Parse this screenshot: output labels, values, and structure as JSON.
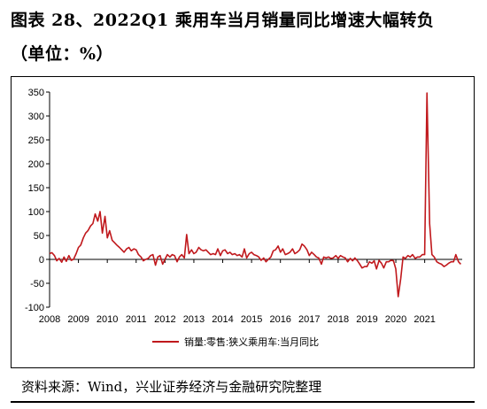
{
  "header": {
    "title": "图表 28、2022Q1 乘用车当月销量同比增速大幅转负",
    "unit": "（单位：%）"
  },
  "source": "资料来源：Wind，兴业证券经济与金融研究院整理",
  "chart_data": {
    "type": "line",
    "title": "图表 28、2022Q1 乘用车当月销量同比增速大幅转负",
    "xlabel": "",
    "ylabel": "",
    "ylim": [
      -100,
      350
    ],
    "yticks": [
      -100,
      -50,
      0,
      50,
      100,
      150,
      200,
      250,
      300,
      350
    ],
    "xlim": [
      2008.0,
      2022.3
    ],
    "xticks": [
      "2008",
      "2009",
      "2010",
      "2011",
      "2012",
      "2013",
      "2014",
      "2015",
      "2016",
      "2017",
      "2018",
      "2019",
      "2020",
      "2021"
    ],
    "grid": false,
    "legend_position": "bottom",
    "series": [
      {
        "name": "销量:零售:狭义乘用车:当月同比",
        "color": "#c0181c",
        "x": [
          2008.0,
          2008.08,
          2008.17,
          2008.25,
          2008.33,
          2008.42,
          2008.5,
          2008.58,
          2008.67,
          2008.75,
          2008.83,
          2008.92,
          2009.0,
          2009.08,
          2009.17,
          2009.25,
          2009.33,
          2009.42,
          2009.5,
          2009.58,
          2009.67,
          2009.75,
          2009.83,
          2009.92,
          2010.0,
          2010.08,
          2010.17,
          2010.25,
          2010.33,
          2010.42,
          2010.5,
          2010.58,
          2010.67,
          2010.75,
          2010.83,
          2010.92,
          2011.0,
          2011.08,
          2011.17,
          2011.25,
          2011.33,
          2011.42,
          2011.5,
          2011.58,
          2011.67,
          2011.75,
          2011.83,
          2011.92,
          2012.0,
          2012.08,
          2012.17,
          2012.25,
          2012.33,
          2012.42,
          2012.5,
          2012.58,
          2012.67,
          2012.75,
          2012.83,
          2012.92,
          2013.0,
          2013.08,
          2013.17,
          2013.25,
          2013.33,
          2013.42,
          2013.5,
          2013.58,
          2013.67,
          2013.75,
          2013.83,
          2013.92,
          2014.0,
          2014.08,
          2014.17,
          2014.25,
          2014.33,
          2014.42,
          2014.5,
          2014.58,
          2014.67,
          2014.75,
          2014.83,
          2014.92,
          2015.0,
          2015.08,
          2015.17,
          2015.25,
          2015.33,
          2015.42,
          2015.5,
          2015.58,
          2015.67,
          2015.75,
          2015.83,
          2015.92,
          2016.0,
          2016.08,
          2016.17,
          2016.25,
          2016.33,
          2016.42,
          2016.5,
          2016.58,
          2016.67,
          2016.75,
          2016.83,
          2016.92,
          2017.0,
          2017.08,
          2017.17,
          2017.25,
          2017.33,
          2017.42,
          2017.5,
          2017.58,
          2017.67,
          2017.75,
          2017.83,
          2017.92,
          2018.0,
          2018.08,
          2018.17,
          2018.25,
          2018.33,
          2018.42,
          2018.5,
          2018.58,
          2018.67,
          2018.75,
          2018.83,
          2018.92,
          2019.0,
          2019.08,
          2019.17,
          2019.25,
          2019.33,
          2019.42,
          2019.5,
          2019.58,
          2019.67,
          2019.75,
          2019.83,
          2019.92,
          2020.0,
          2020.08,
          2020.17,
          2020.25,
          2020.33,
          2020.42,
          2020.5,
          2020.58,
          2020.67,
          2020.75,
          2020.83,
          2020.92,
          2021.0,
          2021.08,
          2021.17,
          2021.25,
          2021.33,
          2021.42,
          2021.5,
          2021.58,
          2021.67,
          2021.75,
          2021.83,
          2021.92,
          2022.0,
          2022.08,
          2022.17,
          2022.25
        ],
        "values": [
          12,
          14,
          8,
          -3,
          2,
          -6,
          5,
          -4,
          8,
          -2,
          0,
          12,
          25,
          30,
          45,
          55,
          60,
          70,
          75,
          95,
          80,
          100,
          55,
          90,
          45,
          60,
          40,
          35,
          30,
          25,
          20,
          15,
          22,
          25,
          18,
          22,
          20,
          10,
          5,
          -3,
          0,
          2,
          8,
          10,
          -12,
          5,
          8,
          -10,
          0,
          10,
          5,
          10,
          8,
          -5,
          5,
          10,
          3,
          52,
          12,
          20,
          12,
          15,
          25,
          20,
          18,
          20,
          15,
          10,
          12,
          10,
          22,
          8,
          18,
          20,
          12,
          15,
          10,
          12,
          8,
          10,
          5,
          22,
          3,
          12,
          15,
          10,
          8,
          5,
          -2,
          3,
          -5,
          0,
          5,
          18,
          20,
          28,
          15,
          22,
          10,
          12,
          15,
          22,
          12,
          15,
          20,
          32,
          28,
          20,
          8,
          15,
          10,
          5,
          3,
          -10,
          5,
          3,
          5,
          2,
          3,
          8,
          2,
          8,
          5,
          3,
          -5,
          2,
          -3,
          3,
          -3,
          -10,
          -18,
          -15,
          -15,
          -5,
          -8,
          -3,
          -20,
          -2,
          -8,
          -18,
          -5,
          -5,
          -2,
          -3,
          -20,
          -78,
          -40,
          5,
          2,
          8,
          5,
          10,
          2,
          5,
          5,
          10,
          10,
          348,
          75,
          10,
          5,
          -5,
          -8,
          -10,
          -15,
          -12,
          -8,
          -5,
          -5,
          10,
          -5,
          -10
        ]
      }
    ]
  }
}
